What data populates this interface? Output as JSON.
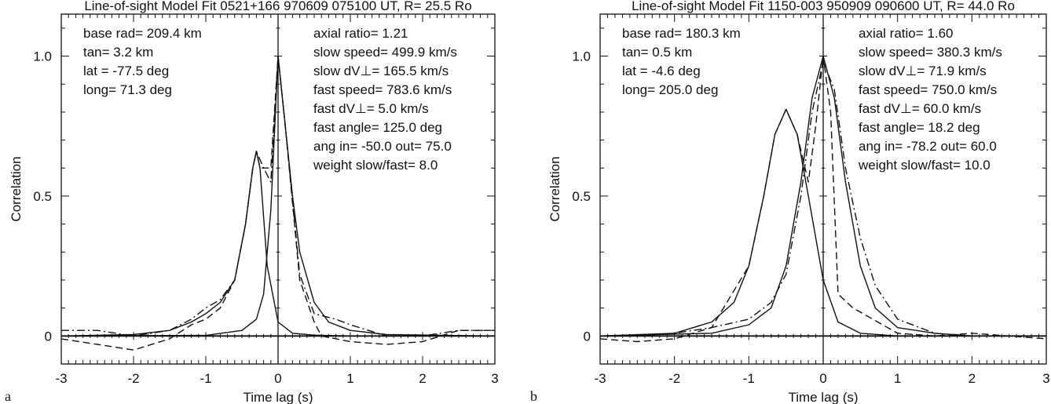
{
  "chart_data": [
    {
      "type": "line",
      "panel_label": "a",
      "title": "Line-of-sight Model Fit 0521+166 970609 075100 UT, R= 25.5 Ro",
      "xlabel": "Time lag (s)",
      "ylabel": "Correlation",
      "xlim": [
        -3,
        3
      ],
      "ylim": [
        -0.1,
        1.15
      ],
      "xticks": [
        "-3",
        "-2",
        "-1",
        "0",
        "1",
        "2",
        "3"
      ],
      "yticks": [
        "0",
        "0.5",
        "1.0"
      ],
      "params_left": [
        "base rad= 209.4 km",
        "tan= 3.2 km",
        "lat =  -77.5 deg",
        "long= 71.3 deg"
      ],
      "params_right": [
        "axial ratio= 1.21",
        "slow speed= 499.9 km/s",
        "slow dV⊥= 165.5 km/s",
        "fast speed= 783.6 km/s",
        "fast dV⊥= 5.0 km/s",
        "fast angle= 125.0 deg",
        "ang in= -50.0 out= 75.0",
        "weight slow/fast= 8.0"
      ],
      "series": [
        {
          "style": "solid",
          "x": [
            -3,
            -2,
            -1.5,
            -1.2,
            -1.0,
            -0.8,
            -0.6,
            -0.45,
            -0.35,
            -0.3,
            -0.25,
            -0.15,
            0,
            0.2,
            0.5,
            1,
            3
          ],
          "y": [
            0,
            0.005,
            0.02,
            0.05,
            0.08,
            0.12,
            0.2,
            0.4,
            0.6,
            0.66,
            0.6,
            0.25,
            0.05,
            0.01,
            0.003,
            0,
            0
          ]
        },
        {
          "style": "solid",
          "x": [
            -3,
            -1,
            -0.5,
            -0.3,
            -0.2,
            -0.1,
            0,
            0.1,
            0.2,
            0.3,
            0.5,
            0.7,
            1,
            1.5,
            3
          ],
          "y": [
            0,
            0.002,
            0.02,
            0.06,
            0.15,
            0.45,
            1.0,
            0.75,
            0.5,
            0.3,
            0.12,
            0.05,
            0.02,
            0.005,
            0
          ]
        },
        {
          "style": "dashed",
          "x": [
            -3,
            -2.5,
            -2.0,
            -1.5,
            -1.2,
            -1.0,
            -0.8,
            -0.6,
            -0.45,
            -0.35,
            -0.3,
            -0.25,
            -0.1,
            0,
            0.1,
            0.3,
            0.5,
            0.6,
            1.0,
            1.5,
            2.0,
            2.5,
            3.0
          ],
          "y": [
            -0.01,
            -0.03,
            -0.05,
            -0.01,
            0.04,
            0.06,
            0.1,
            0.2,
            0.4,
            0.6,
            0.66,
            0.6,
            0.6,
            1.0,
            0.75,
            0.2,
            0.05,
            0.0,
            -0.02,
            -0.03,
            -0.02,
            0.02,
            0.02
          ]
        },
        {
          "style": "dashdot",
          "x": [
            -3,
            -2.5,
            -2.0,
            -1.5,
            -1.2,
            -1.0,
            -0.8,
            -0.6,
            -0.45,
            -0.35,
            -0.3,
            -0.2,
            -0.1,
            0,
            0.1,
            0.3,
            0.5,
            0.8,
            1.0,
            1.5,
            2.0,
            2.5,
            3.0
          ],
          "y": [
            0.02,
            0.02,
            0.0,
            0.02,
            0.06,
            0.1,
            0.13,
            0.2,
            0.4,
            0.6,
            0.66,
            0.6,
            0.55,
            1.0,
            0.75,
            0.22,
            0.08,
            0.06,
            0.04,
            0.0,
            0.0,
            0.02,
            0.02
          ]
        }
      ]
    },
    {
      "type": "line",
      "panel_label": "b",
      "title": "Line-of-sight Model Fit 1150-003 950909 090600 UT, R= 44.0 Ro",
      "xlabel": "Time lag (s)",
      "ylabel": "Correlation",
      "xlim": [
        -3,
        3
      ],
      "ylim": [
        -0.1,
        1.15
      ],
      "xticks": [
        "-3",
        "-2",
        "-1",
        "0",
        "1",
        "2",
        "3"
      ],
      "yticks": [
        "0",
        "0.5",
        "1.0"
      ],
      "params_left": [
        "base rad= 180.3 km",
        "tan= 0.5 km",
        "lat =  -4.6 deg",
        "long= 205.0 deg"
      ],
      "params_right": [
        "axial ratio= 1.60",
        "slow speed= 380.3 km/s",
        "slow dV⊥= 71.9 km/s",
        "fast speed= 750.0 km/s",
        "fast dV⊥= 60.0 km/s",
        "fast angle= 18.2 deg",
        "ang in= -78.2 out= 60.0",
        "weight slow/fast= 10.0"
      ],
      "series": [
        {
          "style": "solid",
          "x": [
            -3,
            -2,
            -1.5,
            -1.2,
            -1.0,
            -0.8,
            -0.65,
            -0.5,
            -0.35,
            -0.2,
            0,
            0.2,
            0.5,
            1,
            3
          ],
          "y": [
            0,
            0.01,
            0.05,
            0.12,
            0.25,
            0.5,
            0.72,
            0.81,
            0.72,
            0.5,
            0.2,
            0.05,
            0.01,
            0,
            0
          ]
        },
        {
          "style": "solid",
          "x": [
            -3,
            -1.5,
            -1.0,
            -0.7,
            -0.5,
            -0.3,
            -0.15,
            0,
            0.15,
            0.3,
            0.5,
            0.7,
            1.0,
            1.5,
            2,
            3
          ],
          "y": [
            0,
            0.01,
            0.04,
            0.1,
            0.25,
            0.55,
            0.85,
            1.0,
            0.85,
            0.55,
            0.25,
            0.1,
            0.03,
            0.01,
            0,
            0
          ]
        },
        {
          "style": "dashed",
          "x": [
            -3,
            -2.5,
            -2.0,
            -1.5,
            -1.0,
            -0.8,
            -0.65,
            -0.5,
            -0.35,
            -0.2,
            -0.1,
            0,
            0.1,
            0.2,
            0.4,
            0.6,
            1.0,
            1.5,
            2.0,
            2.5,
            3.0
          ],
          "y": [
            -0.01,
            -0.02,
            -0.01,
            0.03,
            0.25,
            0.5,
            0.72,
            0.81,
            0.72,
            0.55,
            0.75,
            1.0,
            0.8,
            0.15,
            0.1,
            0.07,
            0.01,
            0.0,
            0.01,
            0.0,
            -0.01
          ]
        },
        {
          "style": "dashdot",
          "x": [
            -3,
            -2.5,
            -2.0,
            -1.5,
            -1.0,
            -0.7,
            -0.5,
            -0.3,
            -0.15,
            0,
            0.15,
            0.3,
            0.5,
            0.7,
            1.0,
            1.5,
            2.0,
            2.5,
            3.0
          ],
          "y": [
            0,
            0.0,
            0.01,
            0.03,
            0.06,
            0.12,
            0.22,
            0.5,
            0.8,
            0.98,
            0.88,
            0.6,
            0.35,
            0.18,
            0.06,
            0.01,
            0.0,
            0.0,
            0.0
          ]
        }
      ]
    }
  ]
}
